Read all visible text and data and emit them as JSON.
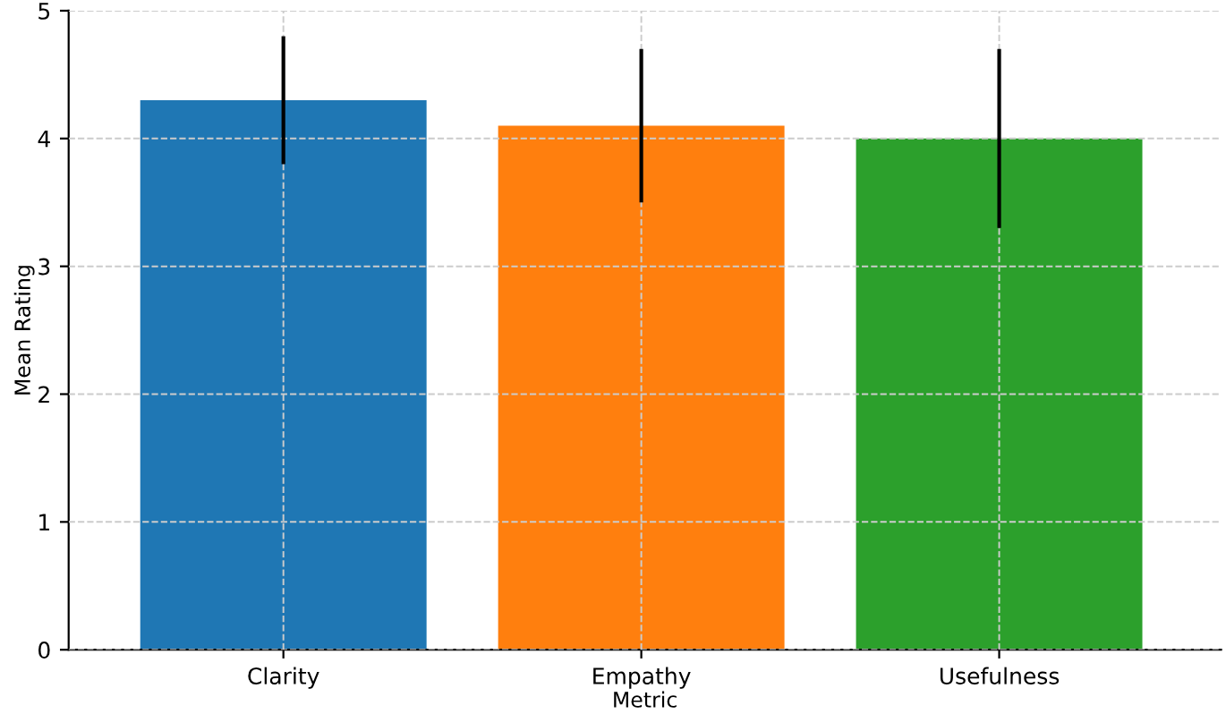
{
  "chart_data": {
    "type": "bar",
    "xlabel": "Metric",
    "ylabel": "Mean Rating",
    "categories": [
      "Clarity",
      "Empathy",
      "Usefulness"
    ],
    "values": [
      4.3,
      4.1,
      4.0
    ],
    "errors": [
      0.5,
      0.6,
      0.7
    ],
    "colors": [
      "#1f77b4",
      "#ff7f0e",
      "#2ca02c"
    ],
    "ylim": [
      0,
      5
    ],
    "yticks": [
      0,
      1,
      2,
      3,
      4,
      5
    ],
    "grid": true
  }
}
